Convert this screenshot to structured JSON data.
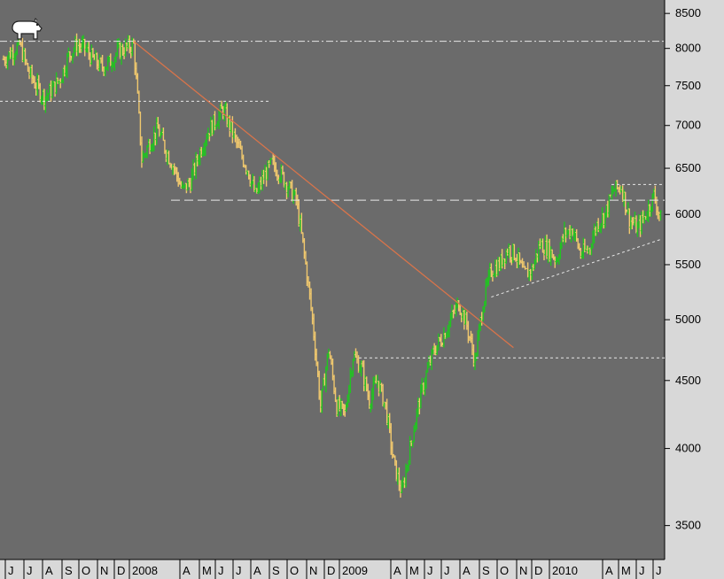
{
  "logo": {
    "icon": "bear-icon"
  },
  "colors": {
    "background": "#6b6b6b",
    "axis_panel": "#d8d8d8",
    "up_bar": "#22c322",
    "down_bar": "#f0c86e",
    "trendline": "#d9744a",
    "reference_line": "#e8e8e8"
  },
  "chart_data": {
    "type": "line",
    "title": "",
    "xlabel": "",
    "ylabel": "",
    "y_scale": "log",
    "ylim": [
      3300,
      8700
    ],
    "grid": false,
    "y_ticks": [
      3500,
      4000,
      4500,
      5000,
      5500,
      6000,
      6500,
      7000,
      7500,
      8000,
      8500
    ],
    "x_ticks": [
      "J",
      "J",
      "A",
      "S",
      "O",
      "N",
      "D",
      "2008",
      "A",
      "M",
      "J",
      "J",
      "A",
      "S",
      "O",
      "N",
      "D",
      "2009",
      "A",
      "M",
      "J",
      "J",
      "A",
      "S",
      "O",
      "N",
      "D",
      "2010",
      "A",
      "M",
      "J",
      "J"
    ],
    "series": [
      {
        "values": [
          7850,
          7950,
          8050,
          7700,
          7500,
          7350,
          7450,
          7600,
          7900,
          8050,
          8000,
          7850,
          7750,
          7800,
          7950,
          8000,
          8050,
          6600,
          6800,
          6950,
          6700,
          6500,
          6250,
          6350,
          6650,
          6900,
          7050,
          7200,
          6950,
          6700,
          6500,
          6200,
          6400,
          6550,
          6450,
          6300,
          6150,
          5600,
          5000,
          4300,
          4750,
          4300,
          4250,
          4700,
          4600,
          4350,
          4500,
          4300,
          3900,
          3700,
          4000,
          4300,
          4550,
          4750,
          4850,
          5000,
          5150,
          4950,
          4650,
          5150,
          5450,
          5500,
          5650,
          5600,
          5400,
          5450,
          5700,
          5650,
          5550,
          5800,
          5850,
          5600,
          5650,
          5900,
          6000,
          6250,
          6300,
          5950,
          5850,
          6000,
          6200,
          5900
        ]
      }
    ],
    "reference_lines": [
      {
        "kind": "horizontal",
        "y": 8100,
        "style": "dash-dot"
      },
      {
        "kind": "horizontal",
        "y": 7300,
        "style": "dotted"
      },
      {
        "kind": "horizontal",
        "y": 6150,
        "style": "dashed"
      },
      {
        "kind": "horizontal",
        "y": 4680,
        "style": "dotted"
      },
      {
        "kind": "horizontal",
        "y": 6320,
        "style": "dotted"
      }
    ],
    "trendlines": [
      {
        "from": [
          16,
          8100
        ],
        "to": [
          60,
          4950
        ],
        "color": "orange"
      },
      {
        "from": [
          60,
          5200
        ],
        "to": [
          81,
          5750
        ],
        "color": "white-dotted"
      }
    ]
  }
}
